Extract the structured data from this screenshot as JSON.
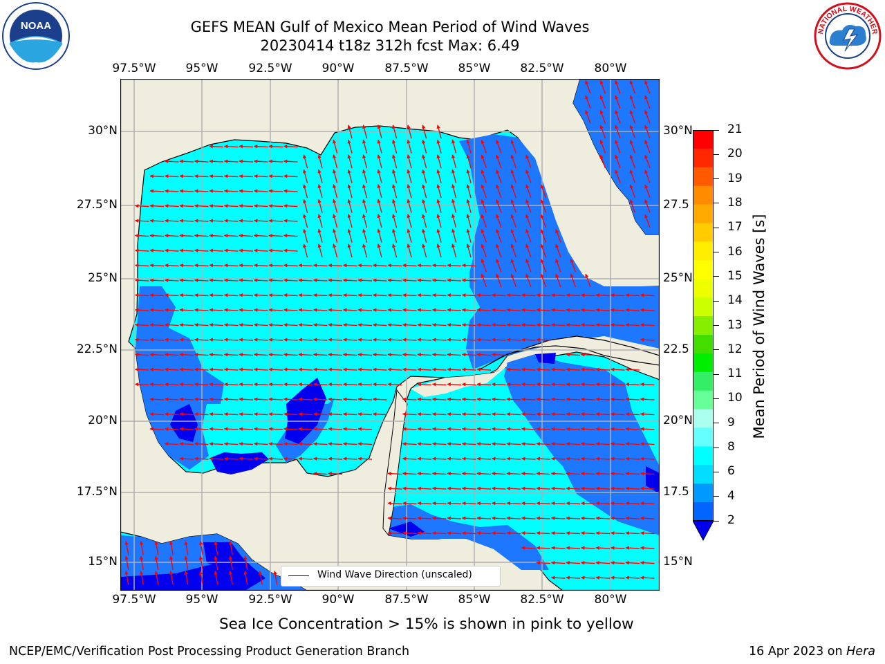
{
  "header": {
    "title_line1": "GEFS MEAN Gulf of Mexico Mean Period of Wind Waves",
    "title_line2": "20230414 t18z 312h fcst   Max: 6.49"
  },
  "logos": {
    "left": "NOAA",
    "right": "NATIONAL WEATHER SERVICE"
  },
  "axes": {
    "lon_labels": [
      "97.5°W",
      "95°W",
      "92.5°W",
      "90°W",
      "87.5°W",
      "85°W",
      "82.5°W",
      "80°W"
    ],
    "lat_left": [
      "30°N",
      "27.5°N",
      "25°N",
      "22.5°N",
      "20°N",
      "17.5°N",
      "15°N"
    ],
    "lat_right": [
      "30°N",
      "27.5",
      "25°N",
      "22.5",
      "20°N",
      "17.5",
      "15°N"
    ]
  },
  "colorbar": {
    "label": "Mean Period of Wind Waves [s]",
    "ticks": [
      "21",
      "20",
      "19",
      "18",
      "17",
      "16",
      "15",
      "14",
      "13",
      "12",
      "11",
      "10",
      "9",
      "8",
      "6",
      "4",
      "2"
    ],
    "colors_top_to_bottom": [
      "#ff0000",
      "#ff2800",
      "#ff5a00",
      "#ff8c00",
      "#ffaa00",
      "#ffcc00",
      "#ffee00",
      "#ffff00",
      "#eeff00",
      "#ccff00",
      "#88ee00",
      "#44dd00",
      "#00ee00",
      "#33ee66",
      "#66ff99",
      "#aaffee",
      "#66ffff",
      "#00ffff",
      "#00ddff",
      "#0099ff",
      "#0066ff"
    ],
    "extend_color": "#0000ee"
  },
  "map": {
    "land_color": "#efedde",
    "water_colors": {
      "cyan": "#00ffff",
      "blue": "#1e78ff",
      "dark": "#0000ee"
    },
    "arrow_color": "#ff0000",
    "legend": "Wind Wave Direction (unscaled)"
  },
  "caption": "Sea Ice Concentration > 15% is shown in pink to yellow",
  "footer": {
    "left": "NCEP/EMC/Verification Post Processing Product Generation Branch",
    "date": "16 Apr 2023 on ",
    "host": "Hera"
  }
}
